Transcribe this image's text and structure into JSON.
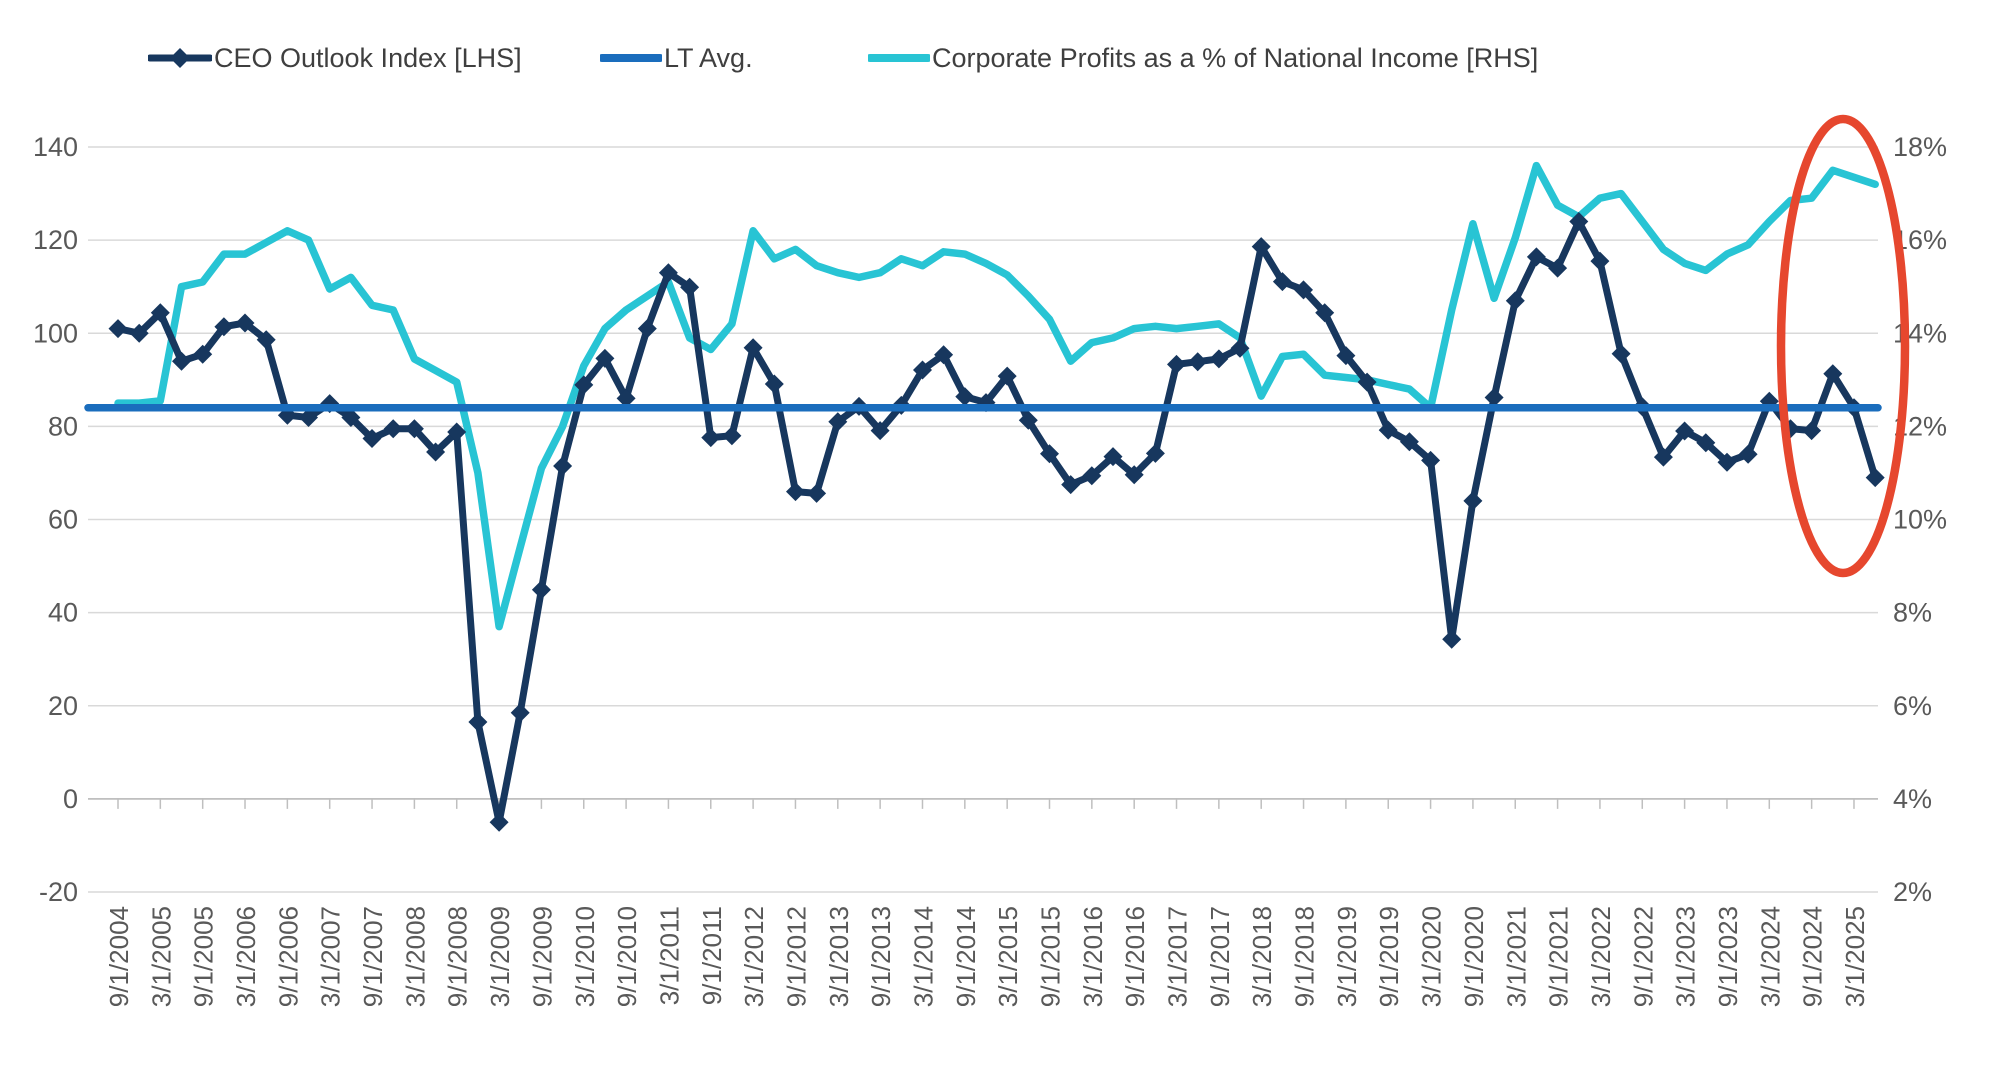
{
  "legend": {
    "items": [
      {
        "label": "CEO Outlook Index [LHS]",
        "color": "#17375E",
        "swatch": "line-with-diamond"
      },
      {
        "label": "LT Avg.",
        "color": "#1A6DBD",
        "swatch": "line"
      },
      {
        "label": "Corporate Profits as a % of National Income [RHS]",
        "color": "#28C4D4",
        "swatch": "line"
      }
    ]
  },
  "chart_data": {
    "type": "line",
    "title": "",
    "grid": true,
    "legend_position": "top",
    "x_tick_labels": [
      "9/1/2004",
      "3/1/2005",
      "9/1/2005",
      "3/1/2006",
      "9/1/2006",
      "3/1/2007",
      "9/1/2007",
      "3/1/2008",
      "9/1/2008",
      "3/1/2009",
      "9/1/2009",
      "3/1/2010",
      "9/1/2010",
      "3/1/2011",
      "9/1/2011",
      "3/1/2012",
      "9/1/2012",
      "3/1/2013",
      "9/1/2013",
      "3/1/2014",
      "9/1/2014",
      "3/1/2015",
      "9/1/2015",
      "3/1/2016",
      "9/1/2016",
      "3/1/2017",
      "9/1/2017",
      "3/1/2018",
      "9/1/2018",
      "3/1/2019",
      "9/1/2019",
      "3/1/2020",
      "9/1/2020",
      "3/1/2021",
      "9/1/2021",
      "3/1/2022",
      "9/1/2022",
      "3/1/2023",
      "9/1/2023",
      "3/1/2024",
      "9/1/2024",
      "3/1/2025"
    ],
    "points_per_half_year": 2,
    "left_axis": {
      "min": -20,
      "max": 140,
      "step": 20,
      "tick_labels": [
        "140",
        "120",
        "100",
        "80",
        "60",
        "40",
        "20",
        "0",
        "-20"
      ],
      "label_color": "#595959"
    },
    "right_axis": {
      "min": 2,
      "max": 18,
      "step": 2,
      "tick_labels": [
        "18%",
        "16%",
        "14%",
        "12%",
        "10%",
        "8%",
        "6%",
        "4%",
        "2%"
      ],
      "label_color": "#595959"
    },
    "series": [
      {
        "name": "CEO Outlook Index [LHS]",
        "axis": "left",
        "color": "#17375E",
        "marker": "diamond",
        "values": [
          101,
          100,
          104.4,
          94,
          95.5,
          101.4,
          102.2,
          98.6,
          82.4,
          81.9,
          84.9,
          81.9,
          77.4,
          79.5,
          79.5,
          74.5,
          78.8,
          16.5,
          -5,
          18.5,
          44.9,
          71.5,
          88.9,
          94.6,
          86,
          101,
          113,
          109.9,
          77.6,
          78,
          96.9,
          89.1,
          66,
          65.6,
          81,
          84.3,
          79.1,
          84.5,
          92.1,
          95.4,
          86.4,
          85.1,
          90.8,
          81.3,
          74.1,
          67.5,
          69.4,
          73.5,
          69.6,
          74.2,
          93.3,
          93.9,
          94.5,
          96.8,
          118.6,
          111.1,
          109.3,
          104.4,
          95.2,
          89.5,
          79.2,
          76.7,
          72.7,
          34.3,
          64,
          86.2,
          107,
          116.4,
          114,
          124,
          115.5,
          95.6,
          84.2,
          73.4,
          79,
          76.5,
          72.3,
          74,
          85.4,
          79.5,
          79.1,
          91.3,
          84,
          69
        ]
      },
      {
        "name": "LT Avg.",
        "axis": "left",
        "color": "#1A6DBD",
        "marker": "none",
        "constant_value": 84
      },
      {
        "name": "Corporate Profits as a % of National Income [RHS]",
        "axis": "right",
        "color": "#28C4D4",
        "marker": "none",
        "values": [
          12.5,
          12.5,
          12.55,
          15.0,
          15.1,
          15.7,
          15.7,
          15.95,
          16.2,
          16.0,
          14.95,
          15.2,
          14.6,
          14.5,
          13.45,
          13.2,
          12.95,
          11.0,
          7.7,
          9.4,
          11.1,
          12.0,
          13.3,
          14.1,
          14.5,
          14.8,
          15.1,
          13.9,
          13.65,
          14.2,
          16.2,
          15.6,
          15.8,
          15.45,
          15.3,
          15.2,
          15.3,
          15.6,
          15.45,
          15.75,
          15.7,
          15.5,
          15.25,
          14.8,
          14.3,
          13.4,
          13.8,
          13.9,
          14.1,
          14.15,
          14.1,
          14.15,
          14.2,
          13.9,
          12.65,
          13.5,
          13.55,
          13.1,
          13.05,
          13.0,
          12.9,
          12.8,
          12.4,
          14.5,
          16.35,
          14.75,
          16.05,
          17.6,
          16.75,
          16.5,
          16.9,
          17.0,
          16.4,
          15.8,
          15.5,
          15.35,
          15.7,
          15.9,
          16.4,
          16.85,
          16.9,
          17.5,
          17.35,
          17.2
        ]
      }
    ],
    "annotation": {
      "shape": "ellipse",
      "color": "#E6472E",
      "meaning": "highlights latest readings"
    },
    "colors": {
      "gridline": "#D9D9D9",
      "category_axis": "#BFBFBF",
      "tick_label": "#595959"
    }
  }
}
